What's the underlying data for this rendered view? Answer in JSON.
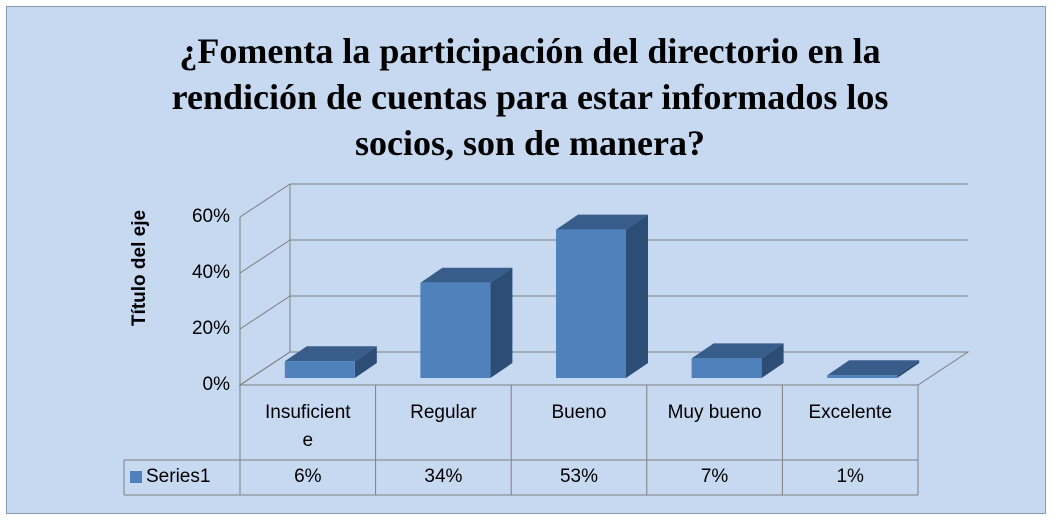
{
  "chart_data": {
    "type": "bar3d",
    "title": "¿Fomenta la participación del directorio en la rendición de cuentas para estar informados los socios, son de manera?",
    "y_label": "Título del eje",
    "categories": [
      "Insuficiente",
      "Regular",
      "Bueno",
      "Muy bueno",
      "Excelente"
    ],
    "series": [
      {
        "name": "Series1",
        "color": "#4f81bd",
        "values": [
          6,
          34,
          53,
          7,
          1
        ],
        "value_labels": [
          "6%",
          "34%",
          "53%",
          "7%",
          "1%"
        ]
      }
    ],
    "ylim": [
      0,
      60
    ],
    "yticks": [
      {
        "value": 0,
        "label": "0%"
      },
      {
        "value": 20,
        "label": "20%"
      },
      {
        "value": 40,
        "label": "40%"
      },
      {
        "value": 60,
        "label": "60%"
      }
    ],
    "grid": true
  }
}
